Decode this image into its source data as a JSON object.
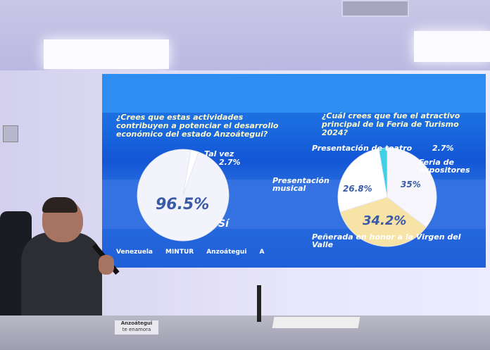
{
  "screen": {
    "left_chart": {
      "question": "¿Crees que estas actividades contribuyen a potenciar el desarrollo económico del estado Anzoátegui?",
      "slices": [
        {
          "label": "Sí",
          "value": 96.5,
          "value_label": "96.5%",
          "color": "#f3f3fb"
        },
        {
          "label": "Tal vez",
          "value": 2.7,
          "value_label": "2.7%",
          "color": "#ffffff"
        }
      ]
    },
    "right_chart": {
      "question": "¿Cuál crees que fue el atractivo principal de la Feria de Turismo 2024?",
      "slices": [
        {
          "label": "Feria de expositores",
          "value": 35,
          "value_label": "35%",
          "color": "#f7f6fd"
        },
        {
          "label": "Peñerada en honor a la Virgen del Valle",
          "value": 34.2,
          "value_label": "34.2%",
          "color": "#f8e3a6"
        },
        {
          "label": "Presentación musical",
          "value": 26.8,
          "value_label": "26.8%",
          "color": "#ffffff"
        },
        {
          "label": "Presentación de teatro",
          "value": 2.7,
          "value_label": "2.7%",
          "color": "#3fd0e6"
        }
      ]
    },
    "logos": [
      "Venezuela",
      "MINTUR",
      "Anzoátegui",
      "A"
    ]
  },
  "desk_sign": {
    "line1": "Anzoátegui",
    "line2": "te enamora"
  }
}
